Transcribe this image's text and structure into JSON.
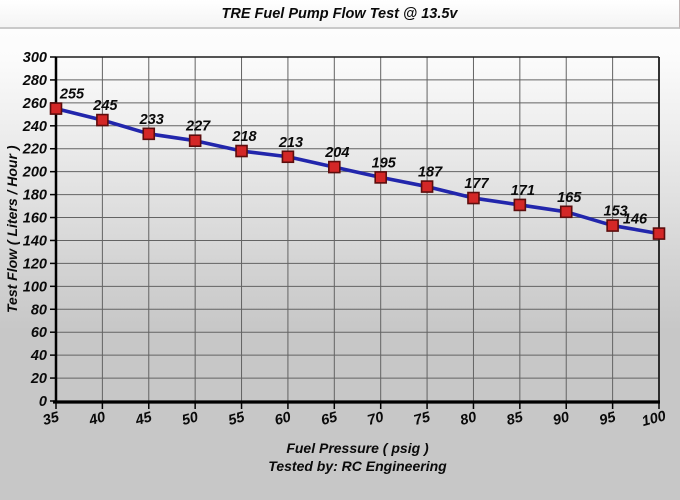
{
  "chart_data": {
    "type": "line",
    "title": "TRE Fuel Pump Flow Test @ 13.5v",
    "xlabel": "Fuel Pressure ( psig )",
    "ylabel": "Test Flow ( Liters / Hour )",
    "footnote": "Tested by: RC Engineering",
    "x": [
      35,
      40,
      45,
      50,
      55,
      60,
      65,
      70,
      75,
      80,
      85,
      90,
      95,
      100
    ],
    "series": [
      {
        "name": "Test Flow",
        "values": [
          255,
          245,
          233,
          227,
          218,
          213,
          204,
          195,
          187,
          177,
          171,
          165,
          153,
          146
        ],
        "marker": "square"
      }
    ],
    "xlim": [
      35,
      100
    ],
    "ylim": [
      0,
      300
    ],
    "x_tick_step": 5,
    "y_tick_step": 20,
    "grid": true,
    "legend": "none",
    "point_labels": true,
    "colors": {
      "line": "#2226ac",
      "marker_fill": "#d32727",
      "marker_border": "#5c0d0d",
      "grid": "#636363",
      "axis": "#000000",
      "plot_border": "#1c1c1c",
      "text": "#0a0a0a",
      "bg_top": "#ffffff",
      "bg_bottom": "#c7c7c7",
      "titlebar_bg": "#fbfbfb",
      "titlebar_border": "#c9c9c9"
    }
  }
}
